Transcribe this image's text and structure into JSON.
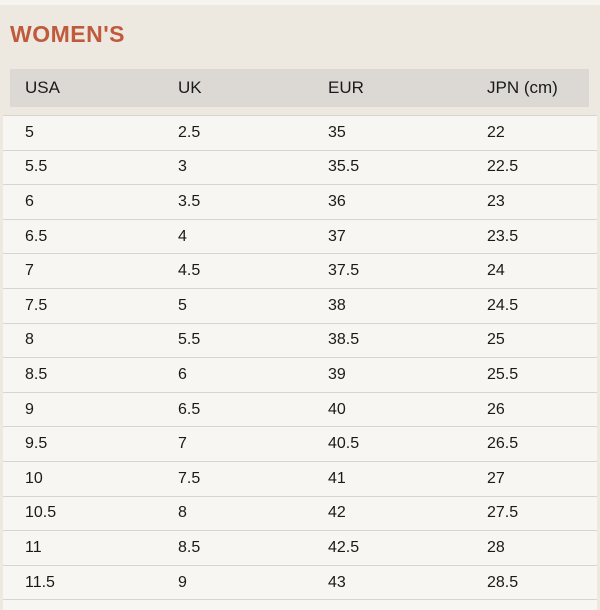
{
  "page": {
    "title": "WOMEN'S"
  },
  "table": {
    "columns": [
      "USA",
      "UK",
      "EUR",
      "JPN (cm)"
    ],
    "rows": [
      [
        "5",
        "2.5",
        "35",
        "22"
      ],
      [
        "5.5",
        "3",
        "35.5",
        "22.5"
      ],
      [
        "6",
        "3.5",
        "36",
        "23"
      ],
      [
        "6.5",
        "4",
        "37",
        "23.5"
      ],
      [
        "7",
        "4.5",
        "37.5",
        "24"
      ],
      [
        "7.5",
        "5",
        "38",
        "24.5"
      ],
      [
        "8",
        "5.5",
        "38.5",
        "25"
      ],
      [
        "8.5",
        "6",
        "39",
        "25.5"
      ],
      [
        "9",
        "6.5",
        "40",
        "26"
      ],
      [
        "9.5",
        "7",
        "40.5",
        "26.5"
      ],
      [
        "10",
        "7.5",
        "41",
        "27"
      ],
      [
        "10.5",
        "8",
        "42",
        "27.5"
      ],
      [
        "11",
        "8.5",
        "42.5",
        "28"
      ],
      [
        "11.5",
        "9",
        "43",
        "28.5"
      ]
    ]
  },
  "colors": {
    "page_background": "#ede9e1",
    "top_strip": "#f6f4ee",
    "title_text": "#c05a3c",
    "header_background": "#dcd9d5",
    "row_background": "#f7f6f3",
    "divider": "#d8d5d1",
    "body_text": "#1a1a1a"
  }
}
